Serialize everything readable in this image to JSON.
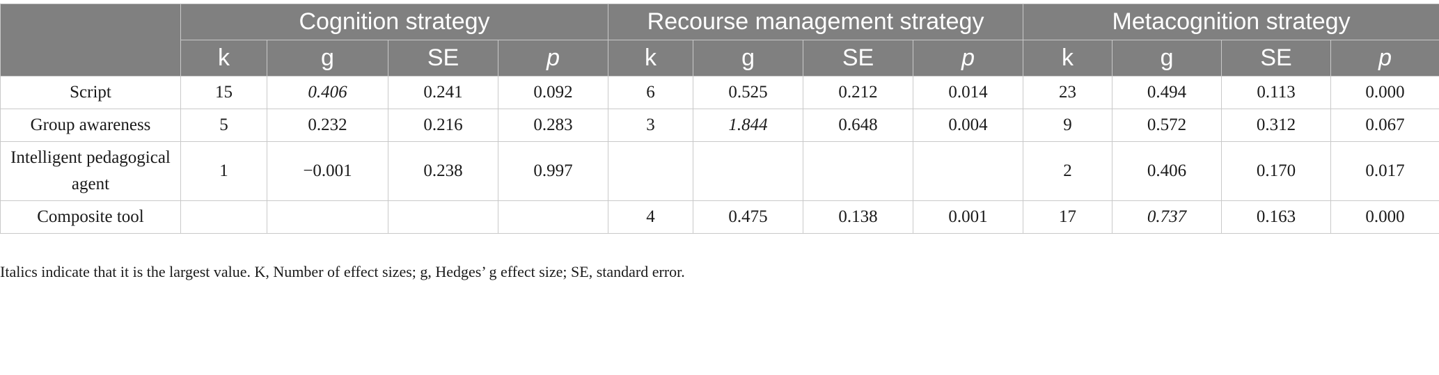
{
  "groups": [
    "Cognition strategy",
    "Recourse management strategy",
    "Metacognition strategy"
  ],
  "columns": [
    "k",
    "g",
    "SE",
    "p",
    "k",
    "g",
    "SE",
    "p",
    "k",
    "g",
    "SE",
    "p"
  ],
  "rows": [
    {
      "label": "Script",
      "cells": [
        "15",
        "0.406",
        "0.241",
        "0.092",
        "6",
        "0.525",
        "0.212",
        "0.014",
        "23",
        "0.494",
        "0.113",
        "0.000"
      ]
    },
    {
      "label": "Group awareness",
      "cells": [
        "5",
        "0.232",
        "0.216",
        "0.283",
        "3",
        "1.844",
        "0.648",
        "0.004",
        "9",
        "0.572",
        "0.312",
        "0.067"
      ]
    },
    {
      "label": "Intelligent pedagogical agent",
      "cells": [
        "1",
        "−0.001",
        "0.238",
        "0.997",
        "",
        "",
        "",
        "",
        "2",
        "0.406",
        "0.170",
        "0.017"
      ]
    },
    {
      "label": "Composite tool",
      "cells": [
        "",
        "",
        "",
        "",
        "4",
        "0.475",
        "0.138",
        "0.001",
        "17",
        "0.737",
        "0.163",
        "0.000"
      ]
    }
  ],
  "footnote": "Italics indicate that it is the largest value. K, Number of effect sizes; g, Hedges’ g effect size; SE, standard error."
}
